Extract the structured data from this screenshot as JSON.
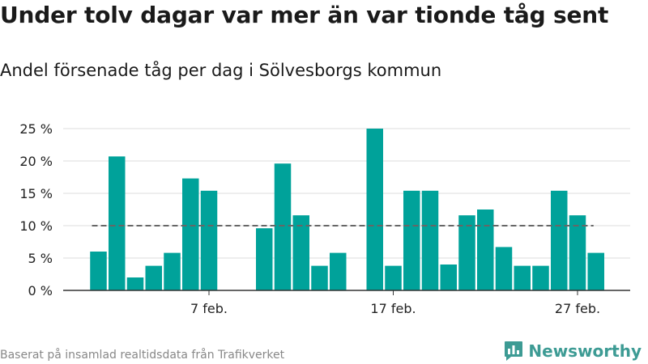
{
  "title": "Under tolv dagar var mer än var tionde tåg sent",
  "subtitle": "Andel försenade tåg per dag i Sölvesborgs kommun",
  "footer": "Baserat på insamlad realtidsdata från Trafikverket",
  "brand": {
    "name": "Newsworthy",
    "icon": "newsworthy-logo-icon"
  },
  "colors": {
    "bar": "#00a29a",
    "reference": "#666666",
    "grid": "#dddddd",
    "axis": "#333333",
    "brand": "#3d9b94"
  },
  "chart_data": {
    "type": "bar",
    "x_tick_labels": [
      "7 feb.",
      "17 feb.",
      "27 feb."
    ],
    "categories": [
      "1 feb.",
      "2 feb.",
      "3 feb.",
      "4 feb.",
      "5 feb.",
      "6 feb.",
      "7 feb.",
      "8 feb.",
      "9 feb.",
      "10 feb.",
      "11 feb.",
      "12 feb.",
      "13 feb.",
      "14 feb.",
      "15 feb.",
      "16 feb.",
      "17 feb.",
      "18 feb.",
      "19 feb.",
      "20 feb.",
      "21 feb.",
      "22 feb.",
      "23 feb.",
      "24 feb.",
      "25 feb.",
      "26 feb.",
      "27 feb.",
      "28 feb."
    ],
    "values": [
      6,
      20.7,
      2,
      3.8,
      5.8,
      17.3,
      15.4,
      null,
      null,
      9.6,
      19.6,
      11.6,
      3.8,
      5.8,
      null,
      25,
      3.8,
      15.4,
      15.4,
      4,
      11.6,
      12.5,
      6.7,
      3.8,
      3.8,
      15.4,
      11.6,
      5.8
    ],
    "reference_line": 10,
    "yticks": [
      0,
      5,
      10,
      15,
      20,
      25
    ],
    "ytick_labels": [
      "0 %",
      "5 %",
      "10 %",
      "15 %",
      "20 %",
      "25 %"
    ],
    "ylim": [
      0,
      25
    ],
    "xlabel": "",
    "ylabel": "",
    "grid": true,
    "legend": "none"
  }
}
